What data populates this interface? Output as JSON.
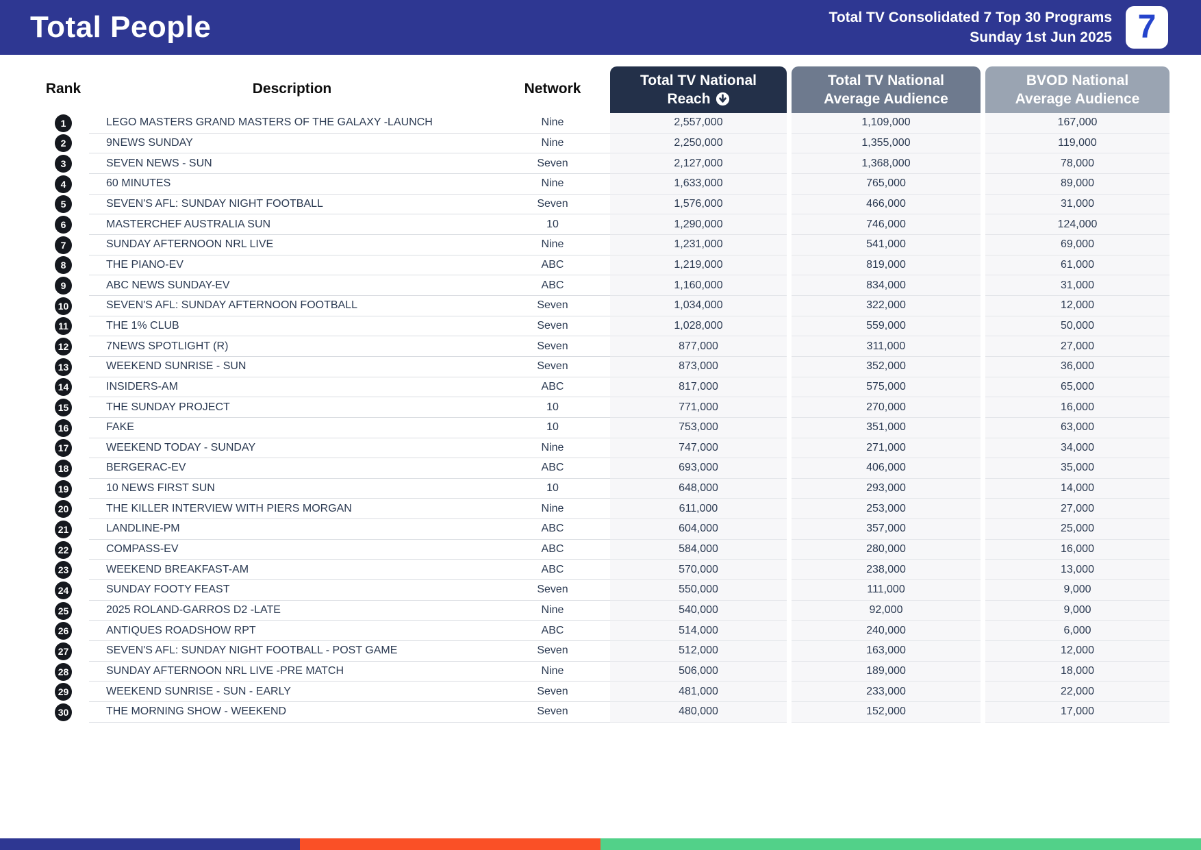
{
  "header": {
    "title": "Total People",
    "subtitle_line1": "Total TV Consolidated 7 Top 30 Programs",
    "subtitle_line2": "Sunday 1st Jun 2025",
    "logo_text": "7"
  },
  "colors": {
    "header_bar": "#2E3792",
    "reach_header": "#233049",
    "avg_header": "#6E7A8E",
    "bvod_header": "#9AA4B2",
    "stripe_blue": "#2E3792",
    "stripe_orange": "#FA5026",
    "stripe_green": "#52D189",
    "row_text": "#2B3A52",
    "rank_badge": "#15181E"
  },
  "table": {
    "columns": {
      "rank": "Rank",
      "description": "Description",
      "network": "Network",
      "reach_line1": "Total TV National",
      "reach_line2": "Reach",
      "avg_line1": "Total TV National",
      "avg_line2": "Average Audience",
      "bvod_line1": "BVOD National",
      "bvod_line2": "Average Audience"
    },
    "sort_icon": "circle-arrow-down-icon",
    "rows": [
      {
        "rank": "1",
        "description": "LEGO MASTERS GRAND MASTERS OF THE GALAXY -LAUNCH",
        "network": "Nine",
        "reach": "2,557,000",
        "avg": "1,109,000",
        "bvod": "167,000"
      },
      {
        "rank": "2",
        "description": "9NEWS SUNDAY",
        "network": "Nine",
        "reach": "2,250,000",
        "avg": "1,355,000",
        "bvod": "119,000"
      },
      {
        "rank": "3",
        "description": "SEVEN NEWS - SUN",
        "network": "Seven",
        "reach": "2,127,000",
        "avg": "1,368,000",
        "bvod": "78,000"
      },
      {
        "rank": "4",
        "description": "60 MINUTES",
        "network": "Nine",
        "reach": "1,633,000",
        "avg": "765,000",
        "bvod": "89,000"
      },
      {
        "rank": "5",
        "description": "SEVEN'S AFL: SUNDAY NIGHT FOOTBALL",
        "network": "Seven",
        "reach": "1,576,000",
        "avg": "466,000",
        "bvod": "31,000"
      },
      {
        "rank": "6",
        "description": "MASTERCHEF AUSTRALIA SUN",
        "network": "10",
        "reach": "1,290,000",
        "avg": "746,000",
        "bvod": "124,000"
      },
      {
        "rank": "7",
        "description": "SUNDAY AFTERNOON NRL LIVE",
        "network": "Nine",
        "reach": "1,231,000",
        "avg": "541,000",
        "bvod": "69,000"
      },
      {
        "rank": "8",
        "description": "THE PIANO-EV",
        "network": "ABC",
        "reach": "1,219,000",
        "avg": "819,000",
        "bvod": "61,000"
      },
      {
        "rank": "9",
        "description": "ABC NEWS SUNDAY-EV",
        "network": "ABC",
        "reach": "1,160,000",
        "avg": "834,000",
        "bvod": "31,000"
      },
      {
        "rank": "10",
        "description": "SEVEN'S AFL: SUNDAY AFTERNOON FOOTBALL",
        "network": "Seven",
        "reach": "1,034,000",
        "avg": "322,000",
        "bvod": "12,000"
      },
      {
        "rank": "11",
        "description": "THE 1% CLUB",
        "network": "Seven",
        "reach": "1,028,000",
        "avg": "559,000",
        "bvod": "50,000"
      },
      {
        "rank": "12",
        "description": "7NEWS SPOTLIGHT (R)",
        "network": "Seven",
        "reach": "877,000",
        "avg": "311,000",
        "bvod": "27,000"
      },
      {
        "rank": "13",
        "description": "WEEKEND SUNRISE - SUN",
        "network": "Seven",
        "reach": "873,000",
        "avg": "352,000",
        "bvod": "36,000"
      },
      {
        "rank": "14",
        "description": "INSIDERS-AM",
        "network": "ABC",
        "reach": "817,000",
        "avg": "575,000",
        "bvod": "65,000"
      },
      {
        "rank": "15",
        "description": "THE SUNDAY PROJECT",
        "network": "10",
        "reach": "771,000",
        "avg": "270,000",
        "bvod": "16,000"
      },
      {
        "rank": "16",
        "description": "FAKE",
        "network": "10",
        "reach": "753,000",
        "avg": "351,000",
        "bvod": "63,000"
      },
      {
        "rank": "17",
        "description": "WEEKEND TODAY - SUNDAY",
        "network": "Nine",
        "reach": "747,000",
        "avg": "271,000",
        "bvod": "34,000"
      },
      {
        "rank": "18",
        "description": "BERGERAC-EV",
        "network": "ABC",
        "reach": "693,000",
        "avg": "406,000",
        "bvod": "35,000"
      },
      {
        "rank": "19",
        "description": "10 NEWS FIRST SUN",
        "network": "10",
        "reach": "648,000",
        "avg": "293,000",
        "bvod": "14,000"
      },
      {
        "rank": "20",
        "description": "THE KILLER INTERVIEW WITH PIERS MORGAN",
        "network": "Nine",
        "reach": "611,000",
        "avg": "253,000",
        "bvod": "27,000"
      },
      {
        "rank": "21",
        "description": "LANDLINE-PM",
        "network": "ABC",
        "reach": "604,000",
        "avg": "357,000",
        "bvod": "25,000"
      },
      {
        "rank": "22",
        "description": "COMPASS-EV",
        "network": "ABC",
        "reach": "584,000",
        "avg": "280,000",
        "bvod": "16,000"
      },
      {
        "rank": "23",
        "description": "WEEKEND BREAKFAST-AM",
        "network": "ABC",
        "reach": "570,000",
        "avg": "238,000",
        "bvod": "13,000"
      },
      {
        "rank": "24",
        "description": "SUNDAY FOOTY FEAST",
        "network": "Seven",
        "reach": "550,000",
        "avg": "111,000",
        "bvod": "9,000"
      },
      {
        "rank": "25",
        "description": "2025 ROLAND-GARROS D2 -LATE",
        "network": "Nine",
        "reach": "540,000",
        "avg": "92,000",
        "bvod": "9,000"
      },
      {
        "rank": "26",
        "description": "ANTIQUES ROADSHOW RPT",
        "network": "ABC",
        "reach": "514,000",
        "avg": "240,000",
        "bvod": "6,000"
      },
      {
        "rank": "27",
        "description": "SEVEN'S AFL: SUNDAY NIGHT FOOTBALL - POST GAME",
        "network": "Seven",
        "reach": "512,000",
        "avg": "163,000",
        "bvod": "12,000"
      },
      {
        "rank": "28",
        "description": "SUNDAY AFTERNOON NRL LIVE -PRE MATCH",
        "network": "Nine",
        "reach": "506,000",
        "avg": "189,000",
        "bvod": "18,000"
      },
      {
        "rank": "29",
        "description": "WEEKEND SUNRISE - SUN - EARLY",
        "network": "Seven",
        "reach": "481,000",
        "avg": "233,000",
        "bvod": "22,000"
      },
      {
        "rank": "30",
        "description": "THE MORNING SHOW - WEEKEND",
        "network": "Seven",
        "reach": "480,000",
        "avg": "152,000",
        "bvod": "17,000"
      }
    ]
  }
}
